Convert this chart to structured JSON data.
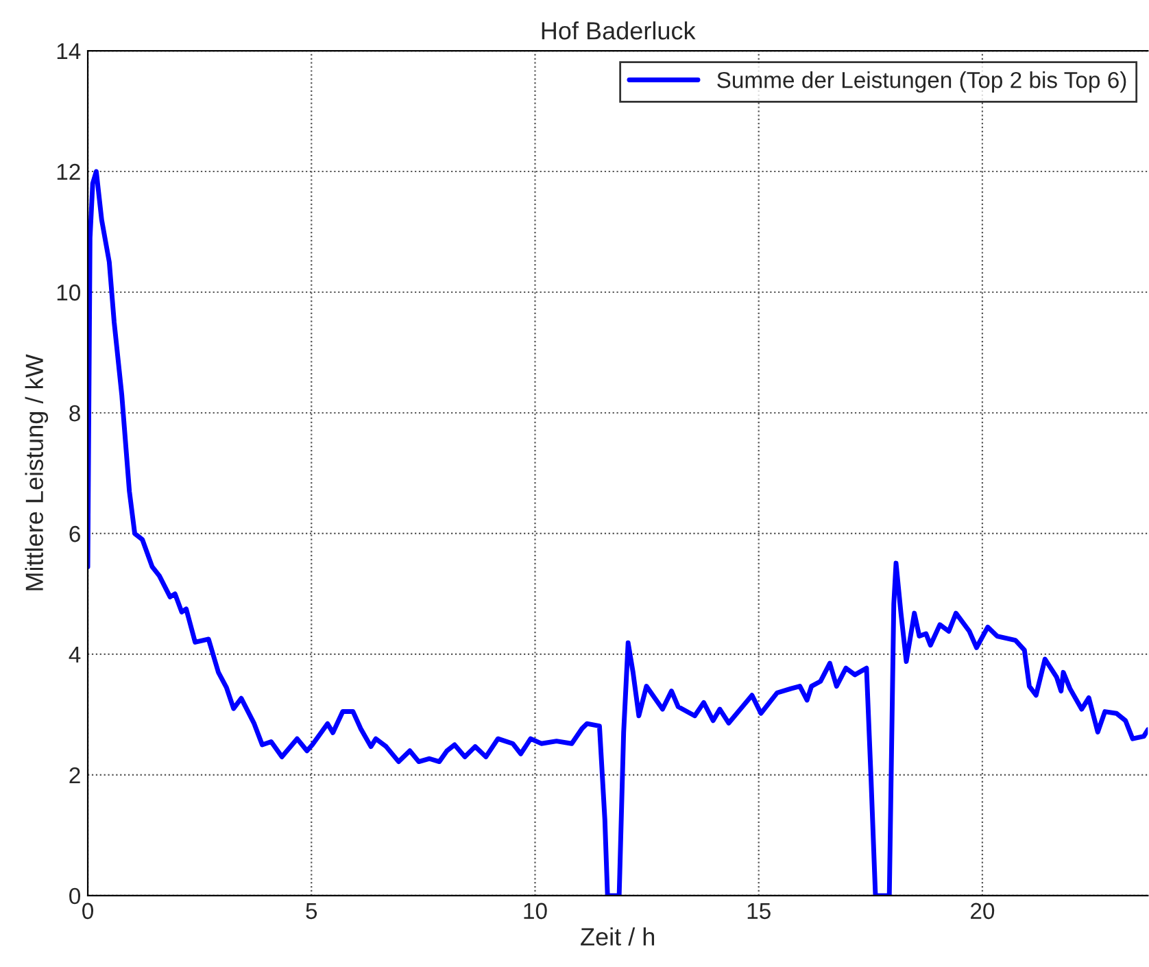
{
  "chart_data": {
    "type": "line",
    "title": "Hof Baderluck",
    "xlabel": "Zeit / h",
    "ylabel": "Mittlere Leistung / kW",
    "xlim": [
      0,
      23.7
    ],
    "xticks": [
      0,
      5,
      10,
      15,
      20
    ],
    "ylim": [
      0,
      14
    ],
    "yticks": [
      0,
      2,
      4,
      6,
      8,
      10,
      12,
      14
    ],
    "grid": true,
    "legend": "top right",
    "marker": "none",
    "line_style": "solid",
    "series": [
      {
        "name": "Summe der Leistungen (Top 2 bis Top 6)",
        "color": "#0000ff",
        "x": [
          0,
          0.05,
          0.11,
          0.19,
          0.31,
          0.48,
          0.59,
          0.76,
          0.93,
          1.05,
          1.22,
          1.44,
          1.6,
          1.84,
          1.95,
          2.1,
          2.2,
          2.4,
          2.7,
          2.92,
          3.1,
          3.26,
          3.43,
          3.72,
          3.9,
          4.1,
          4.34,
          4.68,
          4.9,
          5.02,
          5.36,
          5.48,
          5.7,
          5.93,
          6.1,
          6.33,
          6.44,
          6.67,
          6.95,
          7.2,
          7.4,
          7.64,
          7.86,
          8.03,
          8.2,
          8.43,
          8.66,
          8.9,
          9.17,
          9.5,
          9.68,
          9.9,
          10.14,
          10.48,
          10.82,
          11.05,
          11.16,
          11.44,
          11.56,
          11.62,
          11.88,
          11.98,
          12.08,
          12.19,
          12.32,
          12.49,
          12.85,
          13.05,
          13.2,
          13.57,
          13.77,
          13.98,
          14.13,
          14.33,
          14.85,
          15.05,
          15.41,
          15.72,
          15.92,
          16.08,
          16.18,
          16.38,
          16.59,
          16.74,
          16.95,
          17.15,
          17.41,
          17.51,
          17.61,
          17.92,
          18.02,
          18.07,
          18.18,
          18.3,
          18.48,
          18.59,
          18.74,
          18.84,
          19.05,
          19.25,
          19.41,
          19.71,
          19.87,
          20.12,
          20.33,
          20.74,
          20.94,
          21.05,
          21.2,
          21.4,
          21.66,
          21.76,
          21.81,
          21.96,
          22.22,
          22.38,
          22.58,
          22.74,
          23.0,
          23.2,
          23.36,
          23.61,
          23.7
        ],
        "values": [
          5.45,
          10.9,
          11.8,
          12.0,
          11.2,
          10.5,
          9.5,
          8.3,
          6.7,
          6.0,
          5.9,
          5.45,
          5.3,
          4.95,
          5.0,
          4.7,
          4.75,
          4.2,
          4.25,
          3.7,
          3.45,
          3.1,
          3.27,
          2.85,
          2.5,
          2.55,
          2.3,
          2.6,
          2.4,
          2.5,
          2.85,
          2.7,
          3.05,
          3.05,
          2.77,
          2.47,
          2.6,
          2.47,
          2.22,
          2.4,
          2.22,
          2.27,
          2.22,
          2.4,
          2.5,
          2.3,
          2.47,
          2.3,
          2.6,
          2.52,
          2.35,
          2.6,
          2.52,
          2.56,
          2.52,
          2.77,
          2.85,
          2.81,
          1.26,
          0,
          0,
          2.7,
          4.19,
          3.7,
          2.98,
          3.47,
          3.09,
          3.39,
          3.13,
          2.98,
          3.2,
          2.9,
          3.09,
          2.86,
          3.32,
          3.02,
          3.36,
          3.43,
          3.47,
          3.24,
          3.47,
          3.55,
          3.85,
          3.47,
          3.77,
          3.66,
          3.77,
          1.96,
          0,
          0,
          4.83,
          5.51,
          4.68,
          3.88,
          4.68,
          4.3,
          4.34,
          4.15,
          4.49,
          4.38,
          4.68,
          4.38,
          4.11,
          4.45,
          4.3,
          4.23,
          4.07,
          3.47,
          3.32,
          3.92,
          3.62,
          3.39,
          3.7,
          3.43,
          3.09,
          3.28,
          2.71,
          3.05,
          3.02,
          2.9,
          2.6,
          2.64,
          2.75
        ]
      }
    ]
  }
}
